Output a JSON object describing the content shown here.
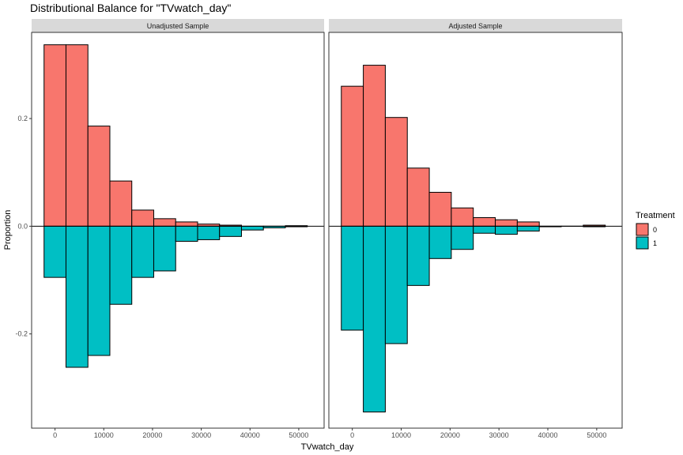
{
  "chart_data": {
    "type": "bar",
    "title": "Distributional Balance for \"TVwatch_day\"",
    "xlabel": "TVwatch_day",
    "ylabel": "Proportion",
    "xlim": [
      -4800,
      55200
    ],
    "ylim": [
      -0.375,
      0.36
    ],
    "x_ticks": [
      0,
      10000,
      20000,
      30000,
      40000,
      50000
    ],
    "x_tick_labels": [
      "0",
      "10000",
      "20000",
      "30000",
      "40000",
      "50000"
    ],
    "y_ticks": [
      -0.2,
      0.0,
      0.2
    ],
    "y_tick_labels": [
      "-0.2",
      "0.0",
      "0.2"
    ],
    "bin_width": 4500,
    "bin_centers": [
      0,
      4500,
      9000,
      13500,
      18000,
      22500,
      27000,
      31500,
      36000,
      40500,
      45000,
      49500
    ],
    "grid": false,
    "legend": {
      "title": "Treatment",
      "position": "right",
      "entries": [
        {
          "label": "0",
          "color": "#F8766D"
        },
        {
          "label": "1",
          "color": "#00BFC4"
        }
      ]
    },
    "panels": [
      {
        "strip_label": "Unadjusted Sample",
        "series": [
          {
            "name": "0",
            "color": "#F8766D",
            "values": [
              0.337,
              0.337,
              0.186,
              0.084,
              0.03,
              0.014,
              0.008,
              0.004,
              0.002,
              0.0,
              0.0,
              0.001
            ]
          },
          {
            "name": "1",
            "color": "#00BFC4",
            "values": [
              -0.095,
              -0.262,
              -0.24,
              -0.145,
              -0.095,
              -0.083,
              -0.028,
              -0.025,
              -0.019,
              -0.007,
              -0.003,
              -0.001
            ]
          }
        ]
      },
      {
        "strip_label": "Adjusted Sample",
        "series": [
          {
            "name": "0",
            "color": "#F8766D",
            "values": [
              0.26,
              0.299,
              0.202,
              0.108,
              0.063,
              0.034,
              0.016,
              0.012,
              0.008,
              0.0,
              0.0,
              0.002
            ]
          },
          {
            "name": "1",
            "color": "#00BFC4",
            "values": [
              -0.193,
              -0.345,
              -0.218,
              -0.11,
              -0.06,
              -0.043,
              -0.013,
              -0.015,
              -0.009,
              -0.001,
              0.0,
              -0.001
            ]
          }
        ]
      }
    ]
  }
}
